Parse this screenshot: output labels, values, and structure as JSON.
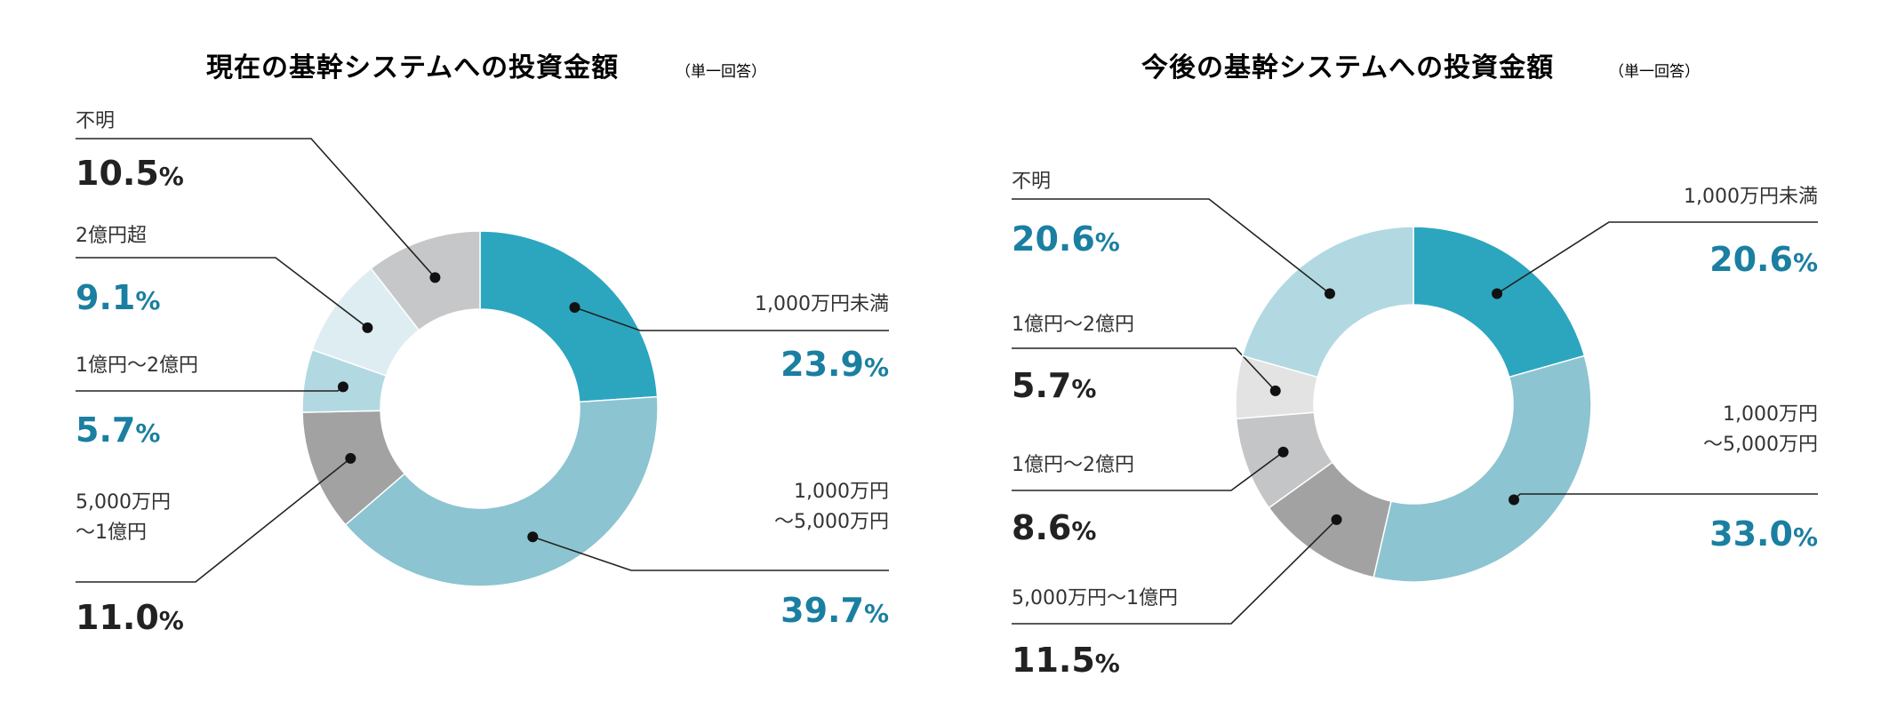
{
  "colors": {
    "title": "#0e84a3",
    "accent_value": "#1a7fa1",
    "dark_value": "#222222",
    "label": "#333333",
    "leader": "#222222"
  },
  "chart_data": [
    {
      "type": "pie",
      "title": "現在の基幹システムへの投資金額",
      "note": "（単一回答）",
      "unit": "%",
      "slices": [
        {
          "label": "1,000万円未満",
          "value": 23.9,
          "value_text": "23.9",
          "color": "#2ca6bf"
        },
        {
          "label": "1,000万円\n〜5,000万円",
          "value": 39.7,
          "value_text": "39.7",
          "color": "#8cc4d1"
        },
        {
          "label": "5,000万円\n〜1億円",
          "value": 11.0,
          "value_text": "11.0",
          "color": "#a2a2a2"
        },
        {
          "label": "1億円〜2億円",
          "value": 5.7,
          "value_text": "5.7",
          "color": "#b2d9e2"
        },
        {
          "label": "2億円超",
          "value": 9.1,
          "value_text": "9.1",
          "color": "#deedf2"
        },
        {
          "label": "不明",
          "value": 10.5,
          "value_text": "10.5",
          "color": "#c6c7c9"
        }
      ]
    },
    {
      "type": "pie",
      "title": "今後の基幹システムへの投資金額",
      "note": "（単一回答）",
      "unit": "%",
      "slices": [
        {
          "label": "1,000万円未満",
          "value": 20.6,
          "value_text": "20.6",
          "color": "#2ca6bf"
        },
        {
          "label": "1,000万円\n〜5,000万円",
          "value": 33.0,
          "value_text": "33.0",
          "color": "#8cc4d1"
        },
        {
          "label": "5,000万円〜1億円",
          "value": 11.5,
          "value_text": "11.5",
          "color": "#a2a2a2"
        },
        {
          "label": "1億円〜2億円",
          "value": 8.6,
          "value_text": "8.6",
          "color": "#c4c5c7"
        },
        {
          "label": "1億円〜2億円",
          "value": 5.7,
          "value_text": "5.7",
          "color": "#e3e3e3"
        },
        {
          "label": "不明",
          "value": 20.6,
          "value_text": "20.6",
          "color": "#b2d9e2"
        }
      ]
    }
  ]
}
